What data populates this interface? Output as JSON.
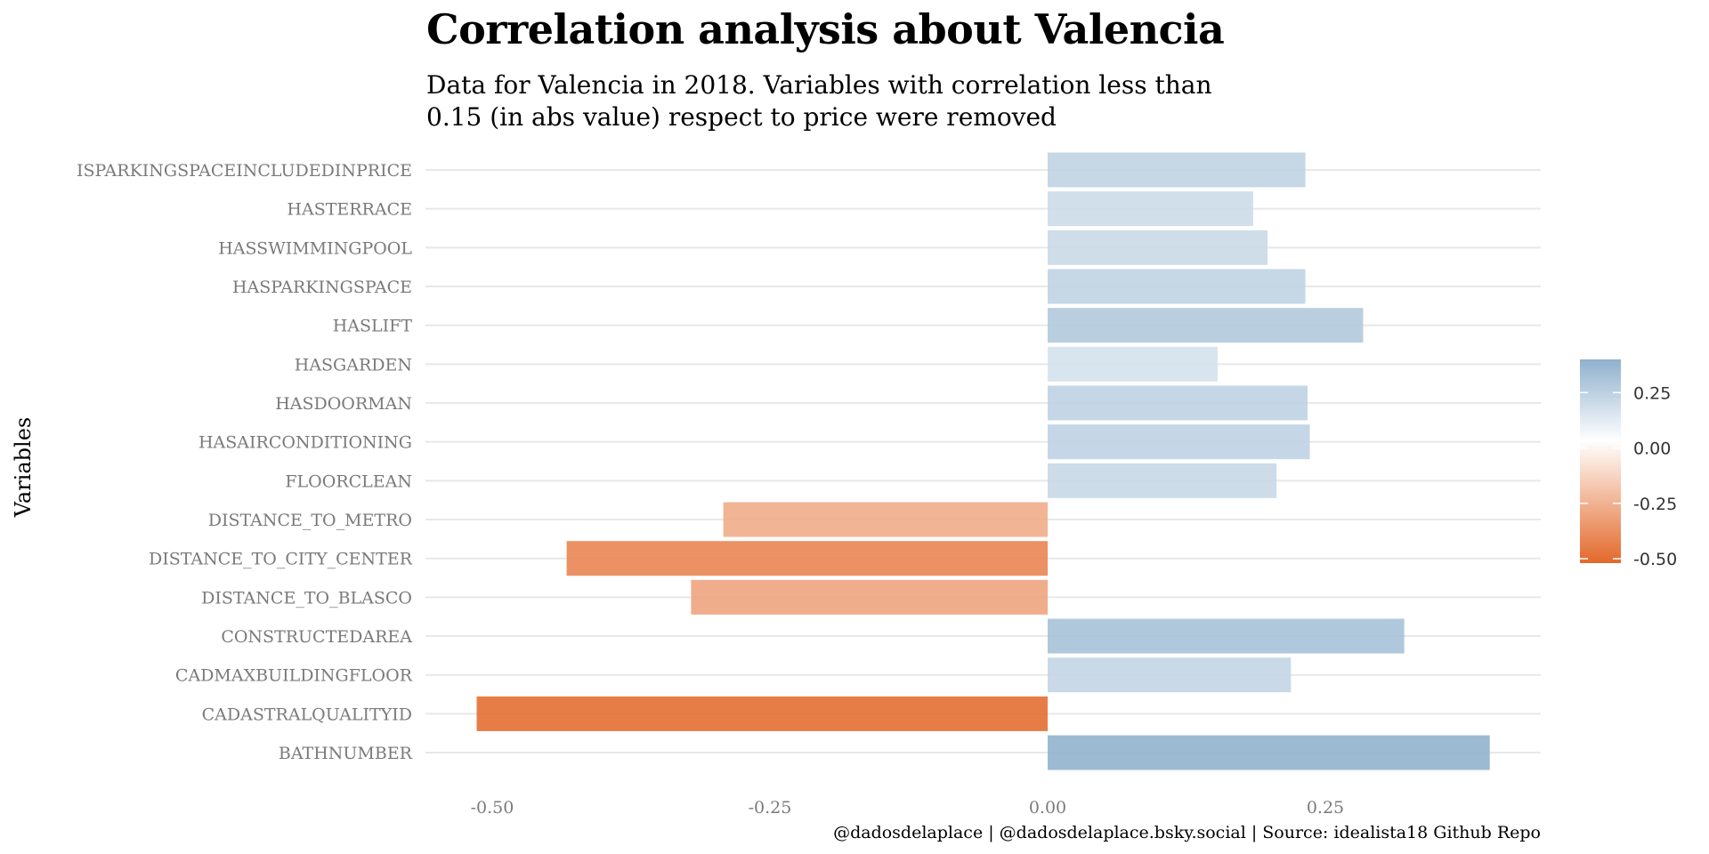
{
  "chart_data": {
    "type": "bar",
    "orientation": "horizontal",
    "title": "Correlation analysis about Valencia",
    "subtitle_lines": [
      "Data for Valencia in 2018. Variables with correlation less than",
      "0.15 (in abs value) respect to price were removed"
    ],
    "xlabel": "",
    "ylabel": "Variables",
    "caption": "@dadosdelaplace | @dadosdelaplace.bsky.social | Source: idealista18 Github Repo",
    "xlim": [
      -0.54,
      0.44
    ],
    "xticks": [
      -0.5,
      -0.25,
      0.0,
      0.25
    ],
    "xtick_labels": [
      "-0.50",
      "-0.25",
      "0.00",
      "0.25"
    ],
    "grid": "horizontal major lines",
    "categories": [
      "ISPARKINGSPACEINCLUDEDINPRICE",
      "HASTERRACE",
      "HASSWIMMINGPOOL",
      "HASPARKINGSPACE",
      "HASLIFT",
      "HASGARDEN",
      "HASDOORMAN",
      "HASAIRCONDITIONING",
      "FLOORCLEAN",
      "DISTANCE_TO_METRO",
      "DISTANCE_TO_CITY_CENTER",
      "DISTANCE_TO_BLASCO",
      "CONSTRUCTEDAREA",
      "CADMAXBUILDINGFLOOR",
      "CADASTRALQUALITYID",
      "BATHNUMBER"
    ],
    "values": [
      0.232,
      0.185,
      0.198,
      0.232,
      0.284,
      0.153,
      0.234,
      0.236,
      0.206,
      -0.292,
      -0.433,
      -0.321,
      0.321,
      0.219,
      -0.514,
      0.398
    ],
    "legend": {
      "position": "right",
      "type": "color gradient",
      "range": [
        -0.52,
        0.4
      ],
      "ticks": [
        0.25,
        0.0,
        -0.25,
        -0.5
      ],
      "tick_labels": [
        "0.25",
        "0.00",
        "-0.25",
        "-0.50"
      ],
      "colors": {
        "low": "#e3692b",
        "mid": "#ffffff",
        "high": "#8fb1cd"
      }
    }
  }
}
